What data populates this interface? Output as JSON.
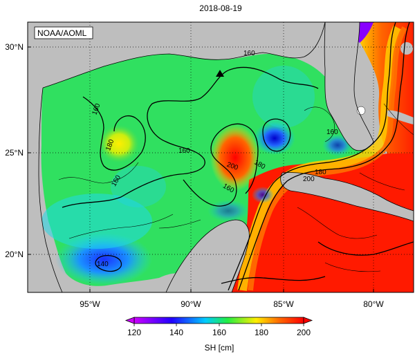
{
  "map_title": "2018-08-19",
  "credit": "NOAA/AOML",
  "axes": {
    "lat_ticks": [
      "30°N",
      "25°N",
      "20°N"
    ],
    "lon_ticks": [
      "95°W",
      "90°W",
      "85°W",
      "80°W"
    ]
  },
  "colorbar": {
    "label": "SH [cm]",
    "ticks": [
      "120",
      "140",
      "160",
      "180",
      "200"
    ],
    "min": 120,
    "max": 200,
    "colors": [
      "#cc00ff",
      "#2200ff",
      "#00ccff",
      "#22ee44",
      "#ffee00",
      "#ff6600",
      "#ff0000"
    ]
  },
  "contour_labels": [
    "160",
    "160",
    "180",
    "160",
    "160",
    "160",
    "200",
    "180",
    "180",
    "200",
    "160",
    "140"
  ],
  "colors": {
    "land": "#bebebe",
    "water_border": "#000000",
    "gulf_green": "#30e060",
    "loop_current": "#ff1a00",
    "eddy_blue": "#1040ff"
  }
}
